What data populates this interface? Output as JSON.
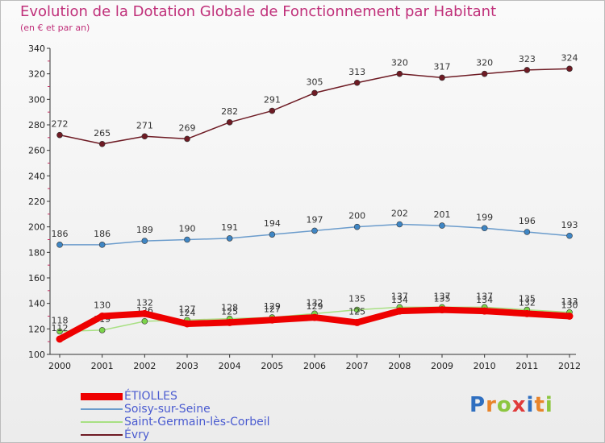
{
  "header": {
    "title": "Evolution de la Dotation Globale de Fonctionnement par Habitant",
    "subtitle": "(en € et par an)"
  },
  "legend": {
    "items": [
      "ÉTIOLLES",
      "Soisy-sur-Seine",
      "Saint-Germain-lès-Corbeil",
      "Évry"
    ]
  },
  "logo": {
    "letters": [
      "P",
      "r",
      "o",
      "x",
      "i",
      "t",
      "i"
    ]
  },
  "chart_data": {
    "type": "line",
    "x": [
      "2000",
      "2001",
      "2002",
      "2003",
      "2004",
      "2005",
      "2006",
      "2007",
      "2008",
      "2009",
      "2010",
      "2011",
      "2012"
    ],
    "ylim": [
      100,
      340
    ],
    "yticks": [
      100,
      120,
      140,
      160,
      180,
      200,
      220,
      240,
      260,
      280,
      300,
      320,
      340
    ],
    "grid": false,
    "legend_position": "bottom-left",
    "series": [
      {
        "name": "Évry",
        "values": [
          272,
          265,
          271,
          269,
          282,
          291,
          305,
          313,
          320,
          317,
          320,
          323,
          324
        ],
        "color": "#6e1b24",
        "marker": "#6e1b24"
      },
      {
        "name": "Soisy-sur-Seine",
        "values": [
          186,
          186,
          189,
          190,
          191,
          194,
          197,
          200,
          202,
          201,
          199,
          196,
          193
        ],
        "color": "#6b9ccc",
        "marker": "#3f86c4"
      },
      {
        "name": "Saint-Germain-lès-Corbeil",
        "values": [
          118,
          119,
          126,
          127,
          128,
          129,
          132,
          135,
          137,
          137,
          137,
          135,
          133
        ],
        "color": "#a8e083",
        "marker": "#7bd44a"
      },
      {
        "name": "ÉTIOLLES",
        "values": [
          112,
          130,
          132,
          124,
          125,
          127,
          129,
          125,
          134,
          135,
          134,
          132,
          130
        ],
        "color": "#ee0000",
        "marker": "#ee0000"
      }
    ]
  },
  "colors": {
    "title": "#c0307a",
    "legend_text": "#4a5bd0"
  }
}
